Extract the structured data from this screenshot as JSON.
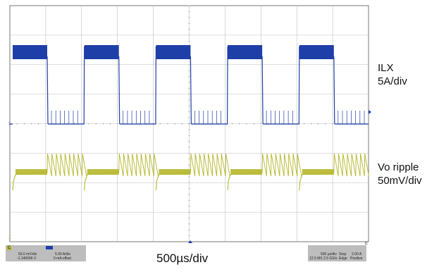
{
  "channels": [
    {
      "label_line1": "ILX",
      "label_line2": "5A/div",
      "color": "#1f3fa8",
      "marker": "1"
    },
    {
      "label_line1": "Vo ripple",
      "label_line2": "50mV/div",
      "color": "#b6b62c",
      "marker": "1"
    }
  ],
  "timebase": "500µs/div",
  "status_left": {
    "ch_c_badge": "C",
    "ch_c_scale": "50.0 mV/div",
    "ch_c_offset": "-1.140006 V",
    "ch_1_scale": "5.00 A/div",
    "ch_1_offset": "0 mA offset"
  },
  "status_right": {
    "timebase": "500 µs/div",
    "stop": "Stop",
    "trig_level": "2.00 A",
    "sample_rate": "12.5 MS",
    "sample_rate2": "2.5 GS/s",
    "edge": "Edge",
    "slope": "Positive"
  },
  "edge_marker": "E",
  "colors": {
    "grid": "#bfbfbf",
    "frame": "#555555",
    "ilx": "#1f3fa8",
    "vo": "#b6b62c"
  }
}
